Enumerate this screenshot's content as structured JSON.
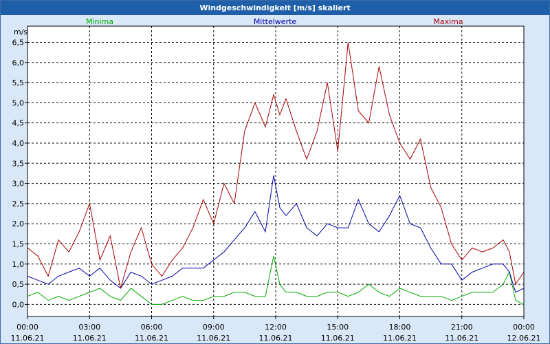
{
  "chart_data": {
    "type": "line",
    "title": "Windgeschwindigkeit [m/s] skaliert",
    "ylabel": "m/s",
    "ylim": [
      -0.3,
      6.9
    ],
    "yticks": [
      "0,0",
      "0,5",
      "1,0",
      "1,5",
      "2,0",
      "2,5",
      "3,0",
      "3,5",
      "4,0",
      "4,5",
      "5,0",
      "5,5",
      "6,0",
      "6,5"
    ],
    "ytick_values": [
      0,
      0.5,
      1,
      1.5,
      2,
      2.5,
      3,
      3.5,
      4,
      4.5,
      5,
      5.5,
      6,
      6.5
    ],
    "x_range_hours": [
      0,
      24
    ],
    "xticks": [
      {
        "time": "00:00",
        "date": "11.06.21"
      },
      {
        "time": "03:00",
        "date": "11.06.21"
      },
      {
        "time": "06:00",
        "date": "11.06.21"
      },
      {
        "time": "09:00",
        "date": "11.06.21"
      },
      {
        "time": "12:00",
        "date": "11.06.21"
      },
      {
        "time": "15:00",
        "date": "11.06.21"
      },
      {
        "time": "18:00",
        "date": "11.06.21"
      },
      {
        "time": "21:00",
        "date": "11.06.21"
      },
      {
        "time": "00:00",
        "date": "12.06.21"
      }
    ],
    "grid": true,
    "series": [
      {
        "name": "Minima",
        "color": "#00aa00",
        "x": [
          0,
          0.5,
          1,
          1.5,
          2,
          2.5,
          3,
          3.5,
          4,
          4.5,
          5,
          5.5,
          6,
          6.5,
          7,
          7.5,
          8,
          8.5,
          9,
          9.5,
          10,
          10.5,
          11,
          11.5,
          11.9,
          12.2,
          12.5,
          13,
          13.5,
          14,
          14.5,
          15,
          15.5,
          16,
          16.5,
          17,
          17.5,
          18,
          18.5,
          19,
          19.5,
          20,
          20.5,
          21,
          21.5,
          22,
          22.5,
          23,
          23.3,
          23.6,
          24
        ],
        "values": [
          0.2,
          0.3,
          0.1,
          0.2,
          0.1,
          0.2,
          0.3,
          0.4,
          0.2,
          0.1,
          0.4,
          0.2,
          0.0,
          0.0,
          0.1,
          0.2,
          0.1,
          0.1,
          0.2,
          0.2,
          0.3,
          0.3,
          0.2,
          0.2,
          1.2,
          0.5,
          0.3,
          0.3,
          0.2,
          0.2,
          0.3,
          0.3,
          0.2,
          0.3,
          0.5,
          0.3,
          0.2,
          0.4,
          0.3,
          0.2,
          0.2,
          0.2,
          0.1,
          0.2,
          0.3,
          0.3,
          0.3,
          0.5,
          0.8,
          0.1,
          0.0
        ]
      },
      {
        "name": "Mittelwerte",
        "color": "#0000aa",
        "x": [
          0,
          0.5,
          1,
          1.5,
          2,
          2.5,
          3,
          3.5,
          4,
          4.5,
          5,
          5.5,
          6,
          6.5,
          7,
          7.5,
          8,
          8.5,
          9,
          9.5,
          10,
          10.5,
          11,
          11.5,
          11.9,
          12.2,
          12.5,
          13,
          13.5,
          14,
          14.5,
          15,
          15.5,
          16,
          16.5,
          17,
          17.5,
          18,
          18.5,
          19,
          19.5,
          20,
          20.5,
          21,
          21.5,
          22,
          22.5,
          23,
          23.3,
          23.6,
          24
        ],
        "values": [
          0.7,
          0.6,
          0.5,
          0.7,
          0.8,
          0.9,
          0.7,
          0.9,
          0.6,
          0.4,
          0.8,
          0.7,
          0.5,
          0.6,
          0.7,
          0.9,
          0.9,
          0.9,
          1.1,
          1.3,
          1.6,
          1.9,
          2.3,
          1.8,
          3.2,
          2.4,
          2.2,
          2.5,
          1.9,
          1.7,
          2.0,
          1.9,
          1.9,
          2.6,
          2.0,
          1.8,
          2.2,
          2.7,
          2.0,
          1.9,
          1.4,
          1.0,
          1.0,
          0.6,
          0.8,
          0.9,
          1.0,
          1.0,
          0.8,
          0.3,
          0.4
        ]
      },
      {
        "name": "Maxima",
        "color": "#aa0000",
        "x": [
          0,
          0.5,
          1,
          1.5,
          2,
          2.5,
          3,
          3.5,
          4,
          4.5,
          5,
          5.5,
          6,
          6.5,
          7,
          7.5,
          8,
          8.5,
          9,
          9.5,
          10,
          10.5,
          11,
          11.5,
          11.9,
          12.2,
          12.5,
          13,
          13.5,
          14,
          14.5,
          15,
          15.5,
          16,
          16.5,
          17,
          17.5,
          18,
          18.5,
          19,
          19.5,
          20,
          20.5,
          21,
          21.5,
          22,
          22.5,
          23,
          23.3,
          23.6,
          24
        ],
        "values": [
          1.4,
          1.2,
          0.7,
          1.6,
          1.3,
          1.8,
          2.5,
          1.1,
          1.7,
          0.4,
          1.3,
          1.9,
          1.0,
          0.7,
          1.1,
          1.4,
          1.9,
          2.6,
          2.0,
          3.0,
          2.5,
          4.3,
          5.0,
          4.4,
          5.2,
          4.7,
          5.1,
          4.3,
          3.6,
          4.3,
          5.5,
          3.8,
          6.5,
          4.8,
          4.5,
          5.9,
          4.7,
          4.0,
          3.6,
          4.1,
          2.9,
          2.4,
          1.5,
          1.1,
          1.4,
          1.3,
          1.4,
          1.6,
          1.3,
          0.5,
          0.8
        ]
      }
    ]
  }
}
